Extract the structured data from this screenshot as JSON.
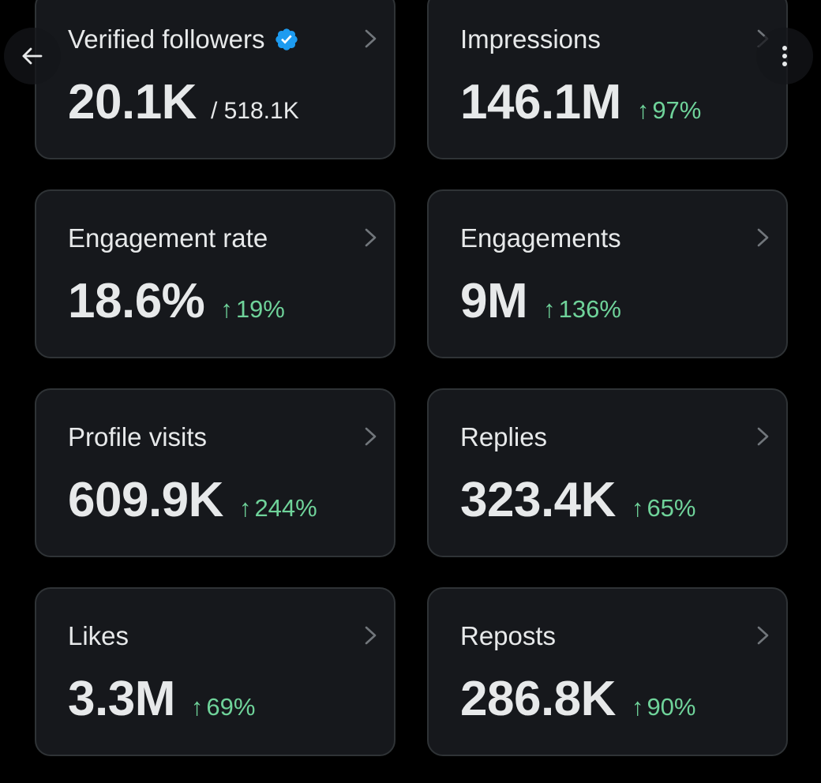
{
  "header": {
    "back_icon": "arrow-left-icon",
    "more_icon": "more-vertical-icon"
  },
  "metrics": [
    {
      "id": "verified-followers",
      "title": "Verified followers",
      "value": "20.1K",
      "total": "/ 518.1K",
      "change": "",
      "verified": true
    },
    {
      "id": "impressions",
      "title": "Impressions",
      "value": "146.1M",
      "change": "97%"
    },
    {
      "id": "engagement-rate",
      "title": "Engagement rate",
      "value": "18.6%",
      "change": "19%"
    },
    {
      "id": "engagements",
      "title": "Engagements",
      "value": "9M",
      "change": "136%"
    },
    {
      "id": "profile-visits",
      "title": "Profile visits",
      "value": "609.9K",
      "change": "244%"
    },
    {
      "id": "replies",
      "title": "Replies",
      "value": "323.4K",
      "change": "65%"
    },
    {
      "id": "likes",
      "title": "Likes",
      "value": "3.3M",
      "change": "69%"
    },
    {
      "id": "reposts",
      "title": "Reposts",
      "value": "286.8K",
      "change": "90%"
    }
  ],
  "symbols": {
    "arrow_up": "↑"
  },
  "colors": {
    "background": "#000000",
    "card": "#16181c",
    "card_border": "#2f3336",
    "text": "#e7e9ea",
    "positive": "#6fd39a",
    "verified": "#1d9bf0",
    "chevron": "#71767b"
  }
}
